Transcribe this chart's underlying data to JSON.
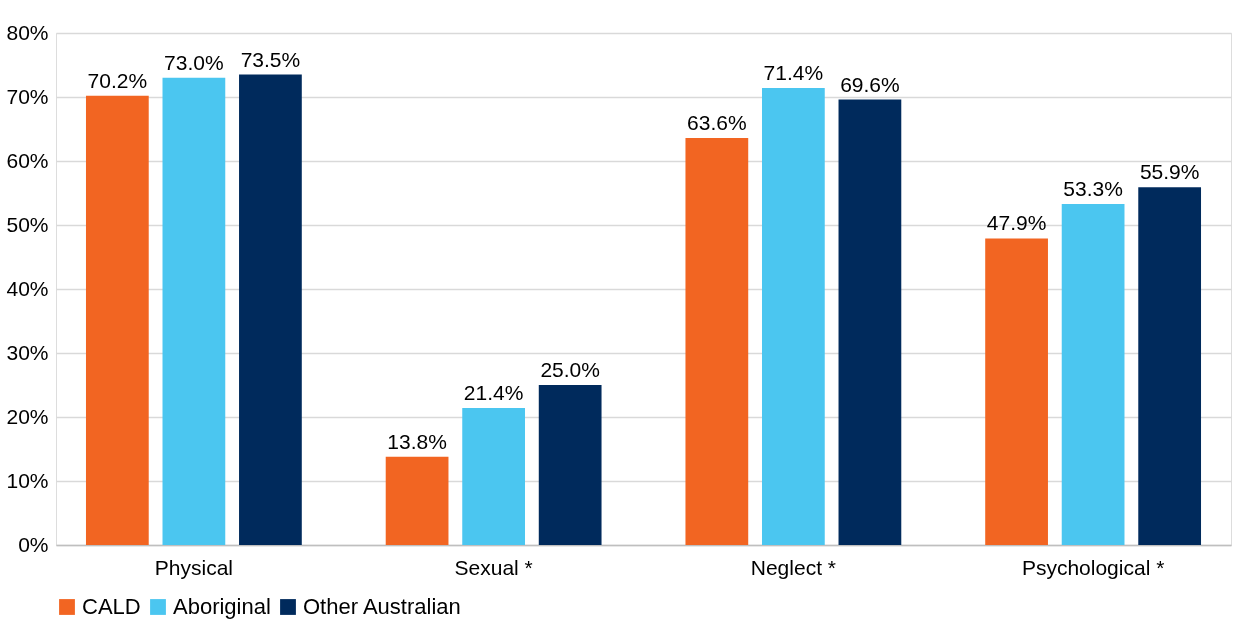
{
  "chart_data": {
    "type": "bar",
    "categories": [
      "Physical",
      "Sexual *",
      "Neglect *",
      "Psychological *"
    ],
    "series": [
      {
        "name": "CALD",
        "color": "#f26522",
        "values": [
          70.2,
          13.8,
          63.6,
          47.9
        ],
        "value_labels": [
          "70.2%",
          "13.8%",
          "63.6%",
          "47.9%"
        ]
      },
      {
        "name": "Aboriginal",
        "color": "#4bc6f0",
        "values": [
          73.0,
          21.4,
          71.4,
          53.3
        ],
        "value_labels": [
          "73.0%",
          "21.4%",
          "71.4%",
          "53.3%"
        ]
      },
      {
        "name": "Other Australian",
        "color": "#002a5c",
        "values": [
          73.5,
          25.0,
          69.6,
          55.9
        ],
        "value_labels": [
          "73.5%",
          "25.0%",
          "69.6%",
          "55.9%"
        ]
      }
    ],
    "ylim": [
      0,
      80
    ],
    "yticks": [
      {
        "value": 0,
        "label": "0%"
      },
      {
        "value": 10,
        "label": "10%"
      },
      {
        "value": 20,
        "label": "20%"
      },
      {
        "value": 30,
        "label": "30%"
      },
      {
        "value": 40,
        "label": "40%"
      },
      {
        "value": 50,
        "label": "50%"
      },
      {
        "value": 60,
        "label": "60%"
      },
      {
        "value": 70,
        "label": "70%"
      },
      {
        "value": 80,
        "label": "80%"
      }
    ],
    "grid": "y",
    "legend": "bottom"
  }
}
